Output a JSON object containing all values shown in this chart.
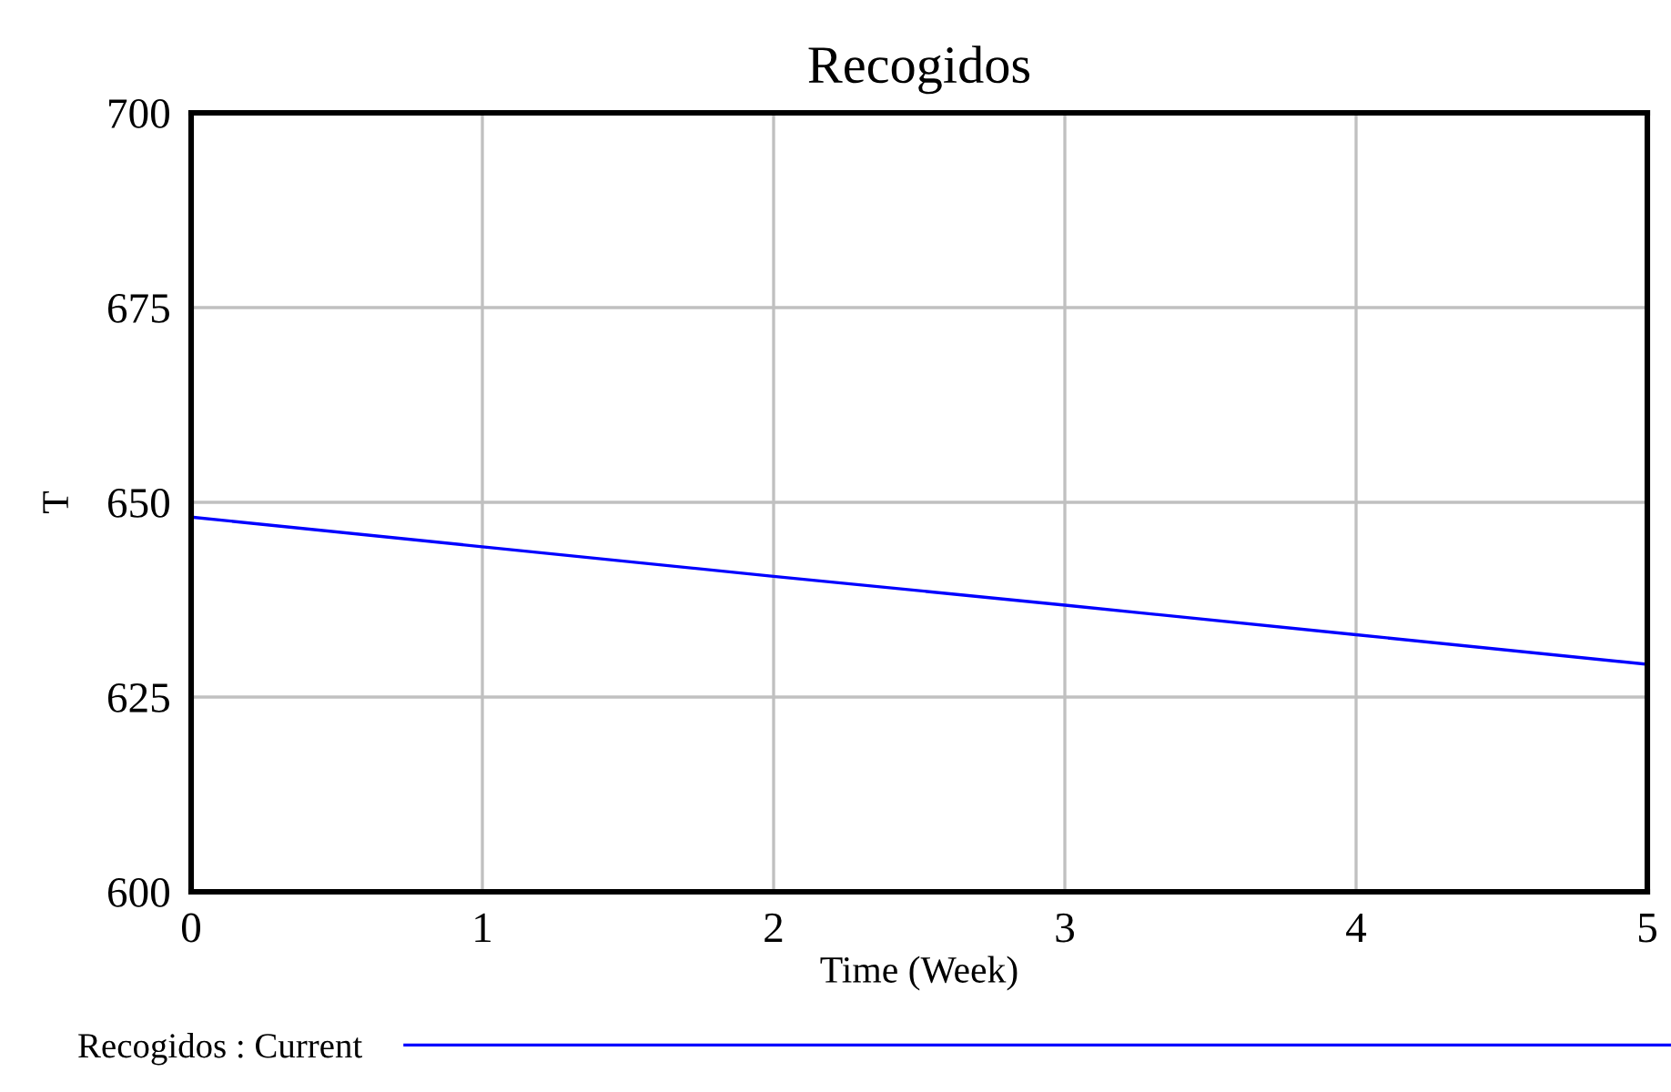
{
  "chart_data": {
    "type": "line",
    "title": "Recogidos",
    "xlabel": "Time (Week)",
    "ylabel": "T",
    "x": [
      0,
      1,
      2,
      3,
      4,
      5
    ],
    "series": [
      {
        "name": "Recogidos : Current",
        "color": "#0000ff",
        "values": [
          648.1,
          644.3,
          640.5,
          636.8,
          633.0,
          629.2
        ]
      }
    ],
    "xlim": [
      0,
      5
    ],
    "xticks": [
      0,
      1,
      2,
      3,
      4,
      5
    ],
    "ylim": [
      600,
      700
    ],
    "yticks": [
      600,
      625,
      650,
      675,
      700
    ],
    "grid": true,
    "legend": "bottom",
    "marker": "none",
    "line_style": "solid"
  }
}
